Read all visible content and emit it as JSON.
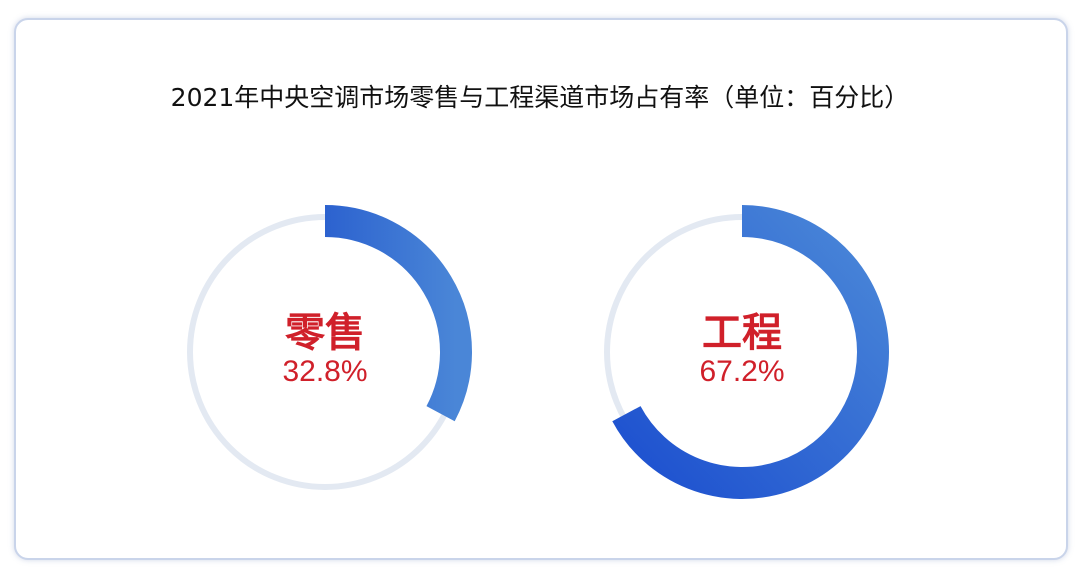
{
  "chart_data": {
    "type": "donut",
    "title": "2021年中央空调市场零售与工程渠道市场占有率（单位：百分比）",
    "series": [
      {
        "name": "零售",
        "value": 32.8,
        "label": "32.8%"
      },
      {
        "name": "工程",
        "value": 67.2,
        "label": "67.2%"
      }
    ],
    "unit": "%",
    "colors": {
      "arc_start": "#1c4fcf",
      "arc_end": "#4b88d8",
      "track": "#e3e9f2",
      "label": "#d0202a"
    }
  }
}
